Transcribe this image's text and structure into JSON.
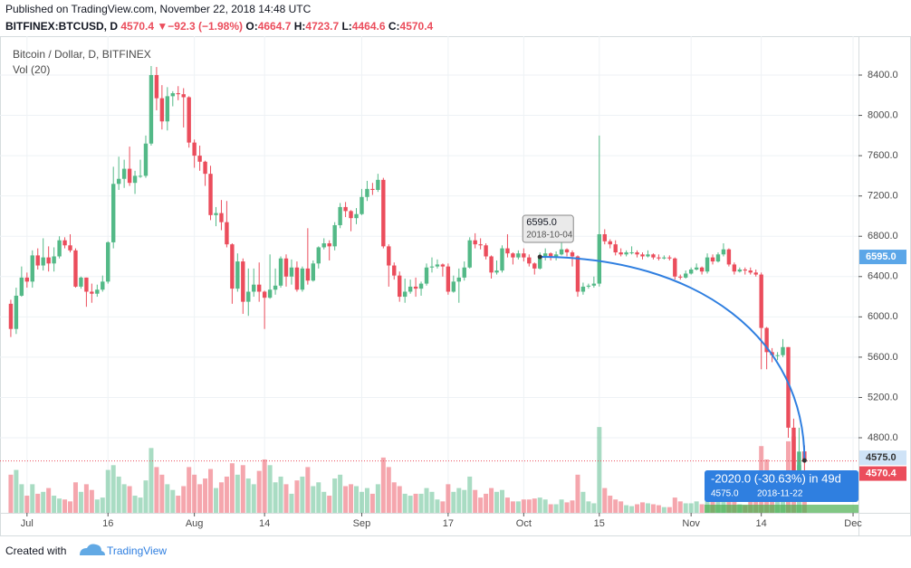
{
  "header": {
    "published": "Published on TradingView.com, November 22, 2018 14:48 UTC",
    "symbol": "BITFINEX:BTCUSD, D",
    "last": "4570.4",
    "arrow": "▼",
    "change": "−92.3 (−1.98%)",
    "ohlc": [
      {
        "label": "O:",
        "value": "4664.7"
      },
      {
        "label": "H:",
        "value": "4723.7"
      },
      {
        "label": "L:",
        "value": "4464.6"
      },
      {
        "label": "C:",
        "value": "4570.4"
      }
    ]
  },
  "chart_data": {
    "type": "candlestick",
    "title": "Bitcoin / Dollar, D, BITFINEX",
    "volume_label": "Vol (20)",
    "up_color": "#53b987",
    "down_color": "#eb4d5c",
    "grid": true,
    "x": [
      "2018-06-28",
      "2018-06-29",
      "2018-06-30",
      "2018-07-01",
      "2018-07-02",
      "2018-07-03",
      "2018-07-04",
      "2018-07-05",
      "2018-07-06",
      "2018-07-07",
      "2018-07-08",
      "2018-07-09",
      "2018-07-10",
      "2018-07-11",
      "2018-07-12",
      "2018-07-13",
      "2018-07-14",
      "2018-07-15",
      "2018-07-16",
      "2018-07-17",
      "2018-07-18",
      "2018-07-19",
      "2018-07-20",
      "2018-07-21",
      "2018-07-22",
      "2018-07-23",
      "2018-07-24",
      "2018-07-25",
      "2018-07-26",
      "2018-07-27",
      "2018-07-28",
      "2018-07-29",
      "2018-07-30",
      "2018-07-31",
      "2018-08-01",
      "2018-08-02",
      "2018-08-03",
      "2018-08-04",
      "2018-08-05",
      "2018-08-06",
      "2018-08-07",
      "2018-08-08",
      "2018-08-09",
      "2018-08-10",
      "2018-08-11",
      "2018-08-12",
      "2018-08-13",
      "2018-08-14",
      "2018-08-15",
      "2018-08-16",
      "2018-08-17",
      "2018-08-18",
      "2018-08-19",
      "2018-08-20",
      "2018-08-21",
      "2018-08-22",
      "2018-08-23",
      "2018-08-24",
      "2018-08-25",
      "2018-08-26",
      "2018-08-27",
      "2018-08-28",
      "2018-08-29",
      "2018-08-30",
      "2018-08-31",
      "2018-09-01",
      "2018-09-02",
      "2018-09-03",
      "2018-09-04",
      "2018-09-05",
      "2018-09-06",
      "2018-09-07",
      "2018-09-08",
      "2018-09-09",
      "2018-09-10",
      "2018-09-11",
      "2018-09-12",
      "2018-09-13",
      "2018-09-14",
      "2018-09-15",
      "2018-09-16",
      "2018-09-17",
      "2018-09-18",
      "2018-09-19",
      "2018-09-20",
      "2018-09-21",
      "2018-09-22",
      "2018-09-23",
      "2018-09-24",
      "2018-09-25",
      "2018-09-26",
      "2018-09-27",
      "2018-09-28",
      "2018-09-29",
      "2018-09-30",
      "2018-10-01",
      "2018-10-02",
      "2018-10-03",
      "2018-10-04",
      "2018-10-05",
      "2018-10-06",
      "2018-10-07",
      "2018-10-08",
      "2018-10-09",
      "2018-10-10",
      "2018-10-11",
      "2018-10-12",
      "2018-10-13",
      "2018-10-14",
      "2018-10-15",
      "2018-10-16",
      "2018-10-17",
      "2018-10-18",
      "2018-10-19",
      "2018-10-20",
      "2018-10-21",
      "2018-10-22",
      "2018-10-23",
      "2018-10-24",
      "2018-10-25",
      "2018-10-26",
      "2018-10-27",
      "2018-10-28",
      "2018-10-29",
      "2018-10-30",
      "2018-10-31",
      "2018-11-01",
      "2018-11-02",
      "2018-11-03",
      "2018-11-04",
      "2018-11-05",
      "2018-11-06",
      "2018-11-07",
      "2018-11-08",
      "2018-11-09",
      "2018-11-10",
      "2018-11-11",
      "2018-11-12",
      "2018-11-13",
      "2018-11-14",
      "2018-11-15",
      "2018-11-16",
      "2018-11-17",
      "2018-11-18",
      "2018-11-19",
      "2018-11-20",
      "2018-11-21",
      "2018-11-22"
    ],
    "open": [
      6130,
      5880,
      6210,
      6390,
      6350,
      6610,
      6510,
      6590,
      6530,
      6600,
      6760,
      6710,
      6660,
      6300,
      6390,
      6250,
      6230,
      6270,
      6350,
      6740,
      7320,
      7370,
      7470,
      7330,
      7400,
      7400,
      7720,
      8400,
      8170,
      7940,
      8190,
      8220,
      8210,
      8180,
      7730,
      7600,
      7540,
      7420,
      7010,
      7030,
      6940,
      6720,
      6280,
      6550,
      6150,
      6250,
      6320,
      6250,
      6190,
      6270,
      6310,
      6580,
      6400,
      6490,
      6270,
      6480,
      6360,
      6530,
      6690,
      6730,
      6700,
      6910,
      7090,
      7050,
      6980,
      7020,
      7190,
      7270,
      7260,
      7360,
      6700,
      6510,
      6410,
      6200,
      6250,
      6300,
      6280,
      6330,
      6490,
      6500,
      6520,
      6500,
      6250,
      6350,
      6390,
      6490,
      6760,
      6720,
      6710,
      6600,
      6440,
      6460,
      6680,
      6630,
      6590,
      6630,
      6590,
      6530,
      6480,
      6595,
      6630,
      6590,
      6620,
      6670,
      6640,
      6600,
      6250,
      6300,
      6310,
      6330,
      6820,
      6750,
      6720,
      6640,
      6620,
      6640,
      6640,
      6620,
      6600,
      6620,
      6590,
      6580,
      6590,
      6580,
      6400,
      6390,
      6430,
      6470,
      6490,
      6450,
      6590,
      6550,
      6620,
      6670,
      6520,
      6450,
      6470,
      6460,
      6440,
      6420,
      5890,
      5650,
      5620,
      5620,
      5700,
      4900,
      4420,
      4664.7
    ],
    "high": [
      6170,
      6290,
      6500,
      6440,
      6660,
      6680,
      6780,
      6700,
      6690,
      6800,
      6790,
      6820,
      6680,
      6400,
      6390,
      6330,
      6320,
      6410,
      6750,
      7490,
      7590,
      7560,
      7690,
      7450,
      7560,
      7800,
      8490,
      8480,
      8300,
      8280,
      8240,
      8290,
      8270,
      8190,
      7760,
      7700,
      7550,
      7500,
      7090,
      7160,
      7150,
      6730,
      6630,
      6580,
      6480,
      6480,
      6540,
      6260,
      6620,
      6480,
      6600,
      6620,
      6570,
      6550,
      6500,
      6880,
      6560,
      6700,
      6780,
      6760,
      6940,
      7130,
      7140,
      7060,
      7080,
      7270,
      7350,
      7330,
      7420,
      7380,
      6720,
      6540,
      6450,
      6380,
      6370,
      6390,
      6350,
      6530,
      6590,
      6570,
      6530,
      6530,
      6410,
      6480,
      6550,
      6790,
      6830,
      6780,
      6730,
      6610,
      6560,
      6710,
      6820,
      6640,
      6660,
      6680,
      6620,
      6540,
      6640,
      6680,
      6640,
      6650,
      6760,
      6680,
      6660,
      6610,
      6340,
      6330,
      6400,
      7800,
      6870,
      6770,
      6760,
      6680,
      6660,
      6700,
      6660,
      6640,
      6660,
      6630,
      6620,
      6610,
      6610,
      6590,
      6420,
      6460,
      6490,
      6530,
      6500,
      6630,
      6620,
      6640,
      6730,
      6680,
      6540,
      6490,
      6490,
      6490,
      6470,
      6440,
      5900,
      5690,
      5650,
      5780,
      5700,
      4990,
      4900,
      4723.7
    ],
    "low": [
      5800,
      5830,
      6200,
      6290,
      6290,
      6470,
      6460,
      6450,
      6450,
      6580,
      6680,
      6640,
      6290,
      6280,
      6100,
      6140,
      6200,
      6250,
      6330,
      6680,
      7260,
      7280,
      7300,
      7220,
      7380,
      7380,
      7700,
      8050,
      7860,
      7850,
      8090,
      8150,
      7880,
      7680,
      7480,
      7450,
      7300,
      6960,
      6900,
      6860,
      6690,
      6130,
      6250,
      6030,
      6010,
      6200,
      6150,
      5880,
      6180,
      6220,
      6290,
      6300,
      6320,
      6250,
      6250,
      6320,
      6350,
      6480,
      6670,
      6560,
      6660,
      6880,
      6990,
      6850,
      6920,
      7010,
      7150,
      7210,
      7240,
      6680,
      6300,
      6370,
      6150,
      6140,
      6230,
      6200,
      6210,
      6310,
      6440,
      6480,
      6400,
      6220,
      6240,
      6140,
      6360,
      6480,
      6680,
      6670,
      6570,
      6380,
      6420,
      6440,
      6590,
      6520,
      6570,
      6550,
      6500,
      6420,
      6470,
      6560,
      6560,
      6560,
      6610,
      6600,
      6500,
      6200,
      6220,
      6280,
      6290,
      6300,
      6720,
      6680,
      6610,
      6600,
      6600,
      6620,
      6590,
      6570,
      6590,
      6570,
      6560,
      6570,
      6560,
      6370,
      6370,
      6380,
      6420,
      6460,
      6420,
      6430,
      6520,
      6540,
      6600,
      6500,
      6420,
      6440,
      6420,
      6420,
      6400,
      5480,
      5480,
      5550,
      5570,
      5600,
      4800,
      4220,
      4380,
      4464.6
    ],
    "close": [
      5880,
      6210,
      6390,
      6350,
      6610,
      6510,
      6590,
      6530,
      6600,
      6760,
      6710,
      6660,
      6300,
      6390,
      6250,
      6230,
      6270,
      6350,
      6740,
      7320,
      7370,
      7470,
      7330,
      7400,
      7400,
      7720,
      8400,
      8170,
      7940,
      8190,
      8220,
      8210,
      8180,
      7730,
      7600,
      7540,
      7420,
      7010,
      7030,
      6940,
      6720,
      6280,
      6550,
      6150,
      6250,
      6320,
      6250,
      6190,
      6270,
      6310,
      6580,
      6400,
      6490,
      6270,
      6480,
      6360,
      6530,
      6690,
      6730,
      6700,
      6910,
      7090,
      7050,
      6980,
      7020,
      7190,
      7270,
      7260,
      7360,
      6700,
      6510,
      6410,
      6200,
      6250,
      6300,
      6280,
      6330,
      6490,
      6500,
      6520,
      6500,
      6250,
      6350,
      6390,
      6490,
      6760,
      6720,
      6710,
      6600,
      6440,
      6460,
      6680,
      6630,
      6590,
      6630,
      6590,
      6530,
      6480,
      6595,
      6630,
      6590,
      6620,
      6670,
      6640,
      6600,
      6250,
      6300,
      6310,
      6330,
      6820,
      6750,
      6720,
      6640,
      6620,
      6640,
      6640,
      6620,
      6600,
      6620,
      6590,
      6580,
      6590,
      6580,
      6400,
      6390,
      6430,
      6470,
      6490,
      6450,
      6590,
      6550,
      6620,
      6670,
      6520,
      6450,
      6470,
      6460,
      6440,
      6420,
      5890,
      5650,
      5620,
      5620,
      5700,
      4900,
      4420,
      4662.7,
      4570.4
    ],
    "volume": [
      40000,
      45000,
      30000,
      18000,
      30000,
      20000,
      22000,
      26000,
      18000,
      15000,
      14000,
      12000,
      32000,
      22000,
      30000,
      24000,
      14000,
      16000,
      45000,
      50000,
      38000,
      30000,
      28000,
      18000,
      16000,
      34000,
      68000,
      48000,
      40000,
      30000,
      24000,
      18000,
      28000,
      48000,
      40000,
      30000,
      36000,
      46000,
      26000,
      32000,
      38000,
      52000,
      40000,
      50000,
      36000,
      30000,
      44000,
      56000,
      50000,
      32000,
      38000,
      30000,
      20000,
      34000,
      38000,
      48000,
      28000,
      32000,
      22000,
      18000,
      36000,
      40000,
      28000,
      30000,
      28000,
      22000,
      26000,
      20000,
      30000,
      58000,
      48000,
      32000,
      28000,
      20000,
      18000,
      20000,
      20000,
      26000,
      22000,
      14000,
      12000,
      30000,
      22000,
      26000,
      24000,
      38000,
      24000,
      16000,
      20000,
      26000,
      22000,
      24000,
      16000,
      12000,
      12000,
      14000,
      14000,
      15000,
      16000,
      14000,
      9000,
      9000,
      14000,
      11000,
      13000,
      40000,
      22000,
      12000,
      10000,
      90000,
      26000,
      18000,
      14000,
      12000,
      8000,
      7000,
      9000,
      11000,
      10000,
      9000,
      8000,
      6000,
      6000,
      16000,
      12000,
      10000,
      10000,
      12000,
      9000,
      14000,
      14000,
      16000,
      20000,
      16000,
      14000,
      9000,
      8000,
      12000,
      14000,
      70000,
      56000,
      40000,
      22000,
      20000,
      75000,
      80000,
      50000,
      22000
    ],
    "volume_ylim": [
      0,
      500000
    ],
    "xlim": [
      "2018-06-26",
      "2018-12-02"
    ],
    "xticks": [
      {
        "value": "2018-07-01",
        "label": "Jul"
      },
      {
        "value": "2018-07-16",
        "label": "16"
      },
      {
        "value": "2018-08-01",
        "label": "Aug"
      },
      {
        "value": "2018-08-14",
        "label": "14"
      },
      {
        "value": "2018-09-01",
        "label": "Sep"
      },
      {
        "value": "2018-09-17",
        "label": "17"
      },
      {
        "value": "2018-10-01",
        "label": "Oct"
      },
      {
        "value": "2018-10-15",
        "label": "15"
      },
      {
        "value": "2018-11-01",
        "label": "Nov"
      },
      {
        "value": "2018-11-14",
        "label": "14"
      },
      {
        "value": "2018-12-01",
        "label": "Dec"
      }
    ],
    "ylim": [
      4055,
      8786
    ],
    "yticks": [
      {
        "value": 4800,
        "label": "4800.0"
      },
      {
        "value": 5200,
        "label": "5200.0"
      },
      {
        "value": 5600,
        "label": "5600.0"
      },
      {
        "value": 6000,
        "label": "6000.0"
      },
      {
        "value": 6400,
        "label": "6400.0"
      },
      {
        "value": 6800,
        "label": "6800.0"
      },
      {
        "value": 7200,
        "label": "7200.0"
      },
      {
        "value": 7600,
        "label": "7600.0"
      },
      {
        "value": 8000,
        "label": "8000.0"
      },
      {
        "value": 8400,
        "label": "8400.0"
      }
    ],
    "drawing": {
      "color": "#2f7fe0",
      "start_date": "2018-10-04",
      "start_price": {
        "value": 6595,
        "label": "6595.0"
      },
      "end_date": "2018-11-22",
      "end_price": {
        "value": 4575,
        "label": "4575.0"
      },
      "measure": "-2020.0 (-30.63%) in 49d"
    }
  },
  "footer": {
    "created_with": "Created with",
    "brand": "TradingView"
  }
}
